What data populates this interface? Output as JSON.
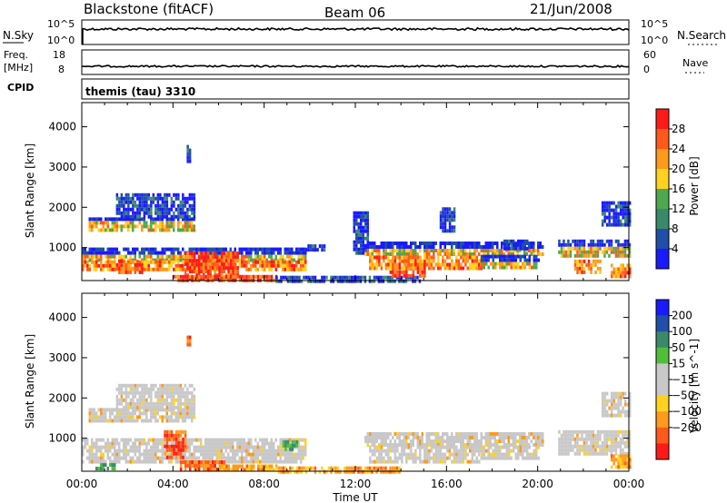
{
  "header": {
    "station": "Blackstone (fitACF)",
    "beam": "Beam 06",
    "date": "21/Jun/2008"
  },
  "top_panels": {
    "nsky_label": "N.Sky",
    "nsky_ticks": [
      "10^5",
      "10^0"
    ],
    "nsearch_label": "N.Search",
    "nsearch_ticks": [
      "10^5",
      "10^0"
    ],
    "freq_label_1": "Freq.",
    "freq_label_2": "[MHz]",
    "freq_ticks": [
      "18",
      "8"
    ],
    "nave_label": "Nave",
    "nave_ticks": [
      "60",
      "0"
    ],
    "cpid_label": "CPID",
    "cpid_value": "themis (tau) 3310"
  },
  "colors": {
    "power_scale": [
      "#1a1aff",
      "#1f4fa8",
      "#3a8a6a",
      "#4fa84f",
      "#ffd21f",
      "#ff9a1a",
      "#ff5a1a",
      "#ff1a1a"
    ],
    "velocity_scale": [
      "#ff1a1a",
      "#ff5a1a",
      "#ff9a1a",
      "#ffd21f",
      "#c8c8c8",
      "#c8c8c8",
      "#4fbf3a",
      "#3a8a6a",
      "#1f4fa8",
      "#1a1aff"
    ]
  },
  "chart_data": [
    {
      "type": "heatmap",
      "name": "power",
      "xlabel": "",
      "ylabel": "Slant Range [km]",
      "ylim": [
        180,
        4600
      ],
      "yticks": [
        "1000",
        "2000",
        "3000",
        "4000"
      ],
      "colorbar_label": "Power [dB]",
      "colorbar_ticks": [
        "4",
        "8",
        "12",
        "16",
        "20",
        "24",
        "28"
      ],
      "colorbar_range": [
        0,
        30
      ],
      "x_range_hours": [
        0,
        24
      ],
      "regions": [
        {
          "x": [
            0.3,
            4.9
          ],
          "y": [
            1450,
            1750
          ],
          "level": "med"
        },
        {
          "x": [
            1.5,
            4.9
          ],
          "y": [
            1750,
            2350
          ],
          "level": "low"
        },
        {
          "x": [
            4.6,
            4.7
          ],
          "y": [
            3100,
            3550
          ],
          "level": "low"
        },
        {
          "x": [
            0.0,
            9.8
          ],
          "y": [
            680,
            1000
          ],
          "level": "med"
        },
        {
          "x": [
            0.0,
            9.8
          ],
          "y": [
            450,
            680
          ],
          "level": "high"
        },
        {
          "x": [
            4.5,
            6.8
          ],
          "y": [
            200,
            900
          ],
          "level": "max"
        },
        {
          "x": [
            1.5,
            2.6
          ],
          "y": [
            400,
            700
          ],
          "level": "max"
        },
        {
          "x": [
            4.0,
            8.5
          ],
          "y": [
            200,
            320
          ],
          "level": "max"
        },
        {
          "x": [
            8.5,
            14.8
          ],
          "y": [
            200,
            300
          ],
          "level": "low"
        },
        {
          "x": [
            9.8,
            10.6
          ],
          "y": [
            950,
            1080
          ],
          "level": "low"
        },
        {
          "x": [
            11.9,
            12.5
          ],
          "y": [
            900,
            1900
          ],
          "level": "low"
        },
        {
          "x": [
            12.4,
            20.2
          ],
          "y": [
            820,
            1150
          ],
          "level": "med"
        },
        {
          "x": [
            13.5,
            15.0
          ],
          "y": [
            250,
            700
          ],
          "level": "max"
        },
        {
          "x": [
            12.6,
            17.5
          ],
          "y": [
            450,
            800
          ],
          "level": "high"
        },
        {
          "x": [
            15.7,
            16.3
          ],
          "y": [
            1400,
            2000
          ],
          "level": "low"
        },
        {
          "x": [
            17.5,
            20.0
          ],
          "y": [
            500,
            820
          ],
          "level": "med"
        },
        {
          "x": [
            18.5,
            19.5
          ],
          "y": [
            1000,
            1200
          ],
          "level": "low"
        },
        {
          "x": [
            20.9,
            24.0
          ],
          "y": [
            750,
            1200
          ],
          "level": "med"
        },
        {
          "x": [
            21.6,
            22.7
          ],
          "y": [
            400,
            700
          ],
          "level": "high"
        },
        {
          "x": [
            22.8,
            24.0
          ],
          "y": [
            1550,
            2150
          ],
          "level": "low"
        },
        {
          "x": [
            23.2,
            24.0
          ],
          "y": [
            250,
            600
          ],
          "level": "high"
        }
      ]
    },
    {
      "type": "heatmap",
      "name": "velocity",
      "xlabel": "Time UT",
      "ylabel": "Slant Range [km]",
      "ylim": [
        180,
        4600
      ],
      "yticks": [
        "1000",
        "2000",
        "3000",
        "4000"
      ],
      "colorbar_label": "Velocity [m s^-1]",
      "colorbar_ticks": [
        "200",
        "100",
        "50",
        "15",
        "−15",
        "−50",
        "−100",
        "−200"
      ],
      "colorbar_range": [
        -250,
        250
      ],
      "x_range_hours": [
        0,
        24
      ],
      "xticks": [
        "00:00",
        "04:00",
        "08:00",
        "12:00",
        "16:00",
        "20:00",
        "00:00"
      ],
      "regions": [
        {
          "x": [
            0.3,
            4.9
          ],
          "y": [
            1450,
            1750
          ],
          "level": "gray"
        },
        {
          "x": [
            1.5,
            4.9
          ],
          "y": [
            1750,
            2350
          ],
          "level": "gray"
        },
        {
          "x": [
            4.6,
            4.7
          ],
          "y": [
            3300,
            3550
          ],
          "level": "neg"
        },
        {
          "x": [
            0.0,
            9.8
          ],
          "y": [
            450,
            1000
          ],
          "level": "gray"
        },
        {
          "x": [
            3.6,
            4.5
          ],
          "y": [
            550,
            1200
          ],
          "level": "neg"
        },
        {
          "x": [
            4.3,
            6.2
          ],
          "y": [
            200,
            450
          ],
          "level": "neg"
        },
        {
          "x": [
            6.0,
            8.5
          ],
          "y": [
            200,
            350
          ],
          "level": "neg2"
        },
        {
          "x": [
            8.8,
            9.4
          ],
          "y": [
            700,
            950
          ],
          "level": "pos"
        },
        {
          "x": [
            0.6,
            1.4
          ],
          "y": [
            220,
            380
          ],
          "level": "pos"
        },
        {
          "x": [
            8.5,
            14.0
          ],
          "y": [
            200,
            300
          ],
          "level": "neg2"
        },
        {
          "x": [
            12.4,
            20.2
          ],
          "y": [
            820,
            1150
          ],
          "level": "gray"
        },
        {
          "x": [
            12.6,
            17.5
          ],
          "y": [
            450,
            820
          ],
          "level": "gray"
        },
        {
          "x": [
            17.5,
            20.0
          ],
          "y": [
            500,
            820
          ],
          "level": "gray"
        },
        {
          "x": [
            20.9,
            24.0
          ],
          "y": [
            600,
            1200
          ],
          "level": "gray"
        },
        {
          "x": [
            22.8,
            24.0
          ],
          "y": [
            1550,
            2150
          ],
          "level": "gray"
        },
        {
          "x": [
            23.2,
            24.0
          ],
          "y": [
            250,
            600
          ],
          "level": "neg2"
        }
      ]
    }
  ]
}
